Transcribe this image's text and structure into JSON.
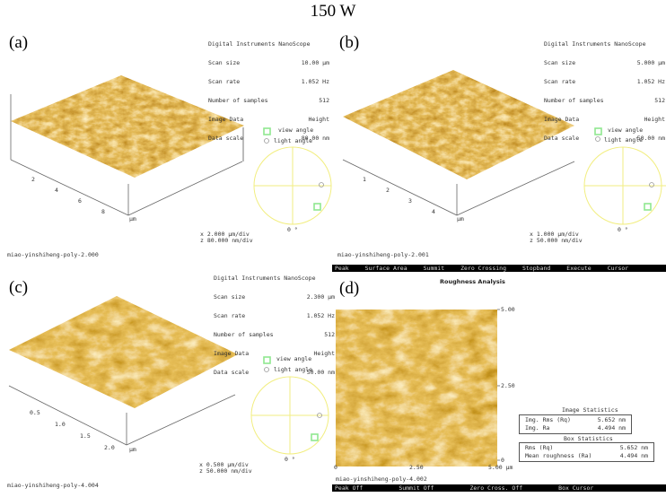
{
  "figure_title": "150 W",
  "colors": {
    "afm_dark": "#4a2400",
    "afm_mid": "#b87420",
    "afm_light": "#f8e4b0",
    "angle_circle": "#f5f07a",
    "view_marker": "#8fe88f"
  },
  "panels": [
    {
      "label": "(a)",
      "info": {
        "header": "Digital Instruments NanoScope",
        "rows": [
          [
            "Scan size",
            "10.00 µm"
          ],
          [
            "Scan rate",
            "1.052 Hz"
          ],
          [
            "Number of samples",
            "512"
          ],
          [
            "Image Data",
            "Height"
          ],
          [
            "Data scale",
            "80.00 nm"
          ]
        ]
      },
      "ticks": [
        "2",
        "4",
        "6",
        "8"
      ],
      "unit": "µm",
      "view_angle": "view angle",
      "light_angle": "light angle",
      "angle_zero": "0 °",
      "x_div": "x  2.000 µm/div",
      "z_div": "z  80.000 nm/div",
      "filename": "miao-yinshiheng-poly-2.000"
    },
    {
      "label": "(b)",
      "info": {
        "header": "Digital Instruments NanoScope",
        "rows": [
          [
            "Scan size",
            "5.000 µm"
          ],
          [
            "Scan rate",
            "1.052 Hz"
          ],
          [
            "Number of samples",
            "512"
          ],
          [
            "Image Data",
            "Height"
          ],
          [
            "Data scale",
            "50.00 nm"
          ]
        ]
      },
      "ticks": [
        "1",
        "2",
        "3",
        "4"
      ],
      "unit": "µm",
      "view_angle": "view angle",
      "light_angle": "light angle",
      "angle_zero": "0 °",
      "x_div": "x  1.000 µm/div",
      "z_div": "z  50.000 nm/div",
      "filename": "miao-yinshiheng-poly-2.001"
    },
    {
      "label": "(c)",
      "info": {
        "header": "Digital Instruments NanoScope",
        "rows": [
          [
            "Scan size",
            "2.300 µm"
          ],
          [
            "Scan rate",
            "1.052 Hz"
          ],
          [
            "Number of samples",
            "512"
          ],
          [
            "Image Data",
            "Height"
          ],
          [
            "Data scale",
            "50.00 nm"
          ]
        ]
      },
      "ticks": [
        "0.5",
        "1.0",
        "1.5",
        "2.0"
      ],
      "unit": "µm",
      "view_angle": "view angle",
      "light_angle": "light angle",
      "angle_zero": "0 °",
      "x_div": "x  0.500 µm/div",
      "z_div": "z  50.000 nm/div",
      "filename": "miao-yinshiheng-poly-4.004"
    }
  ],
  "toolbar_top": [
    "Peak",
    "Surface Area",
    "Summit",
    "Zero Crossing",
    "Stopband",
    "Execute",
    "Cursor"
  ],
  "panel_d": {
    "label": "(d)",
    "title": "Roughness Analysis",
    "right_ticks": [
      "5.00",
      "2.50",
      "0"
    ],
    "bottom_ticks": [
      "0",
      "2.50",
      "5.00 µm"
    ],
    "filename": "miao-yinshiheng-poly-4.002",
    "image_statistics": {
      "title": "Image Statistics",
      "rows": [
        [
          "Img. Rms (Rq)",
          "5.652 nm"
        ],
        [
          "Img. Ra",
          "4.494 nm"
        ]
      ]
    },
    "box_statistics": {
      "title": "Box Statistics",
      "rows": [
        [
          "Rms (Rq)",
          "5.652 nm"
        ],
        [
          "Mean roughness (Ra)",
          "4.494 nm"
        ]
      ]
    }
  },
  "toolbar_bottom": [
    "Peak Off",
    "Summit Off",
    "Zero Cross. Off",
    "Box Cursor"
  ]
}
